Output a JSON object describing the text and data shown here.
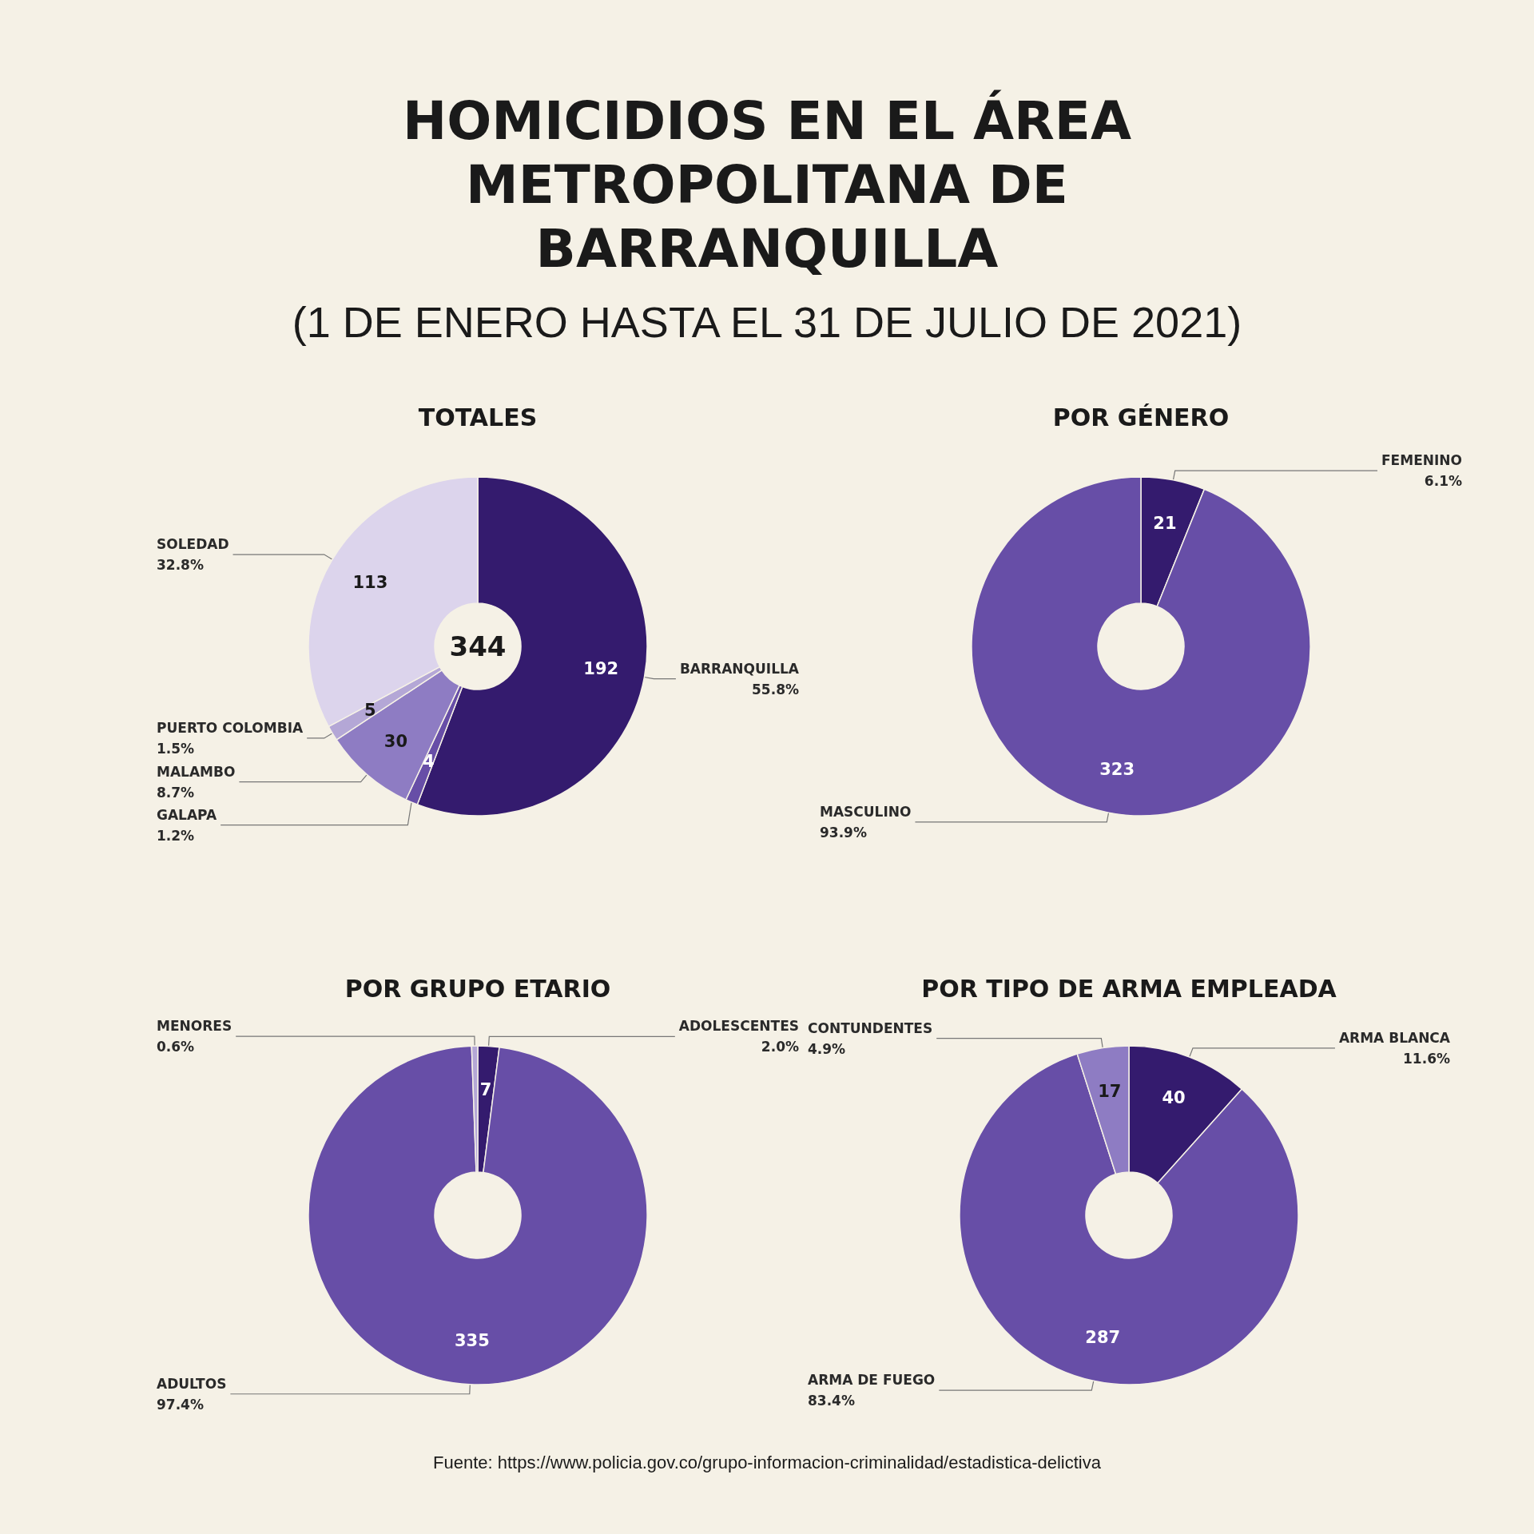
{
  "chart_data": [
    {
      "type": "other",
      "title": "HOMICIDIOS EN EL ÁREA METROPOLITANA DE BARRANQUILLA",
      "subtitle": "(1 DE ENERO HASTA EL 31 DE JULIO DE 2021)",
      "annotations": [
        "Fuente: https://www.policia.gov.co/grupo-informacion-criminalidad/estadistica-delictiva"
      ]
    },
    {
      "type": "donut",
      "title": "TOTALES",
      "categories": [
        "BARRANQUILLA",
        "GALAPA",
        "MALAMBO",
        "PUERTO COLOMBIA",
        "SOLEDAD"
      ],
      "values": [
        192,
        4,
        30,
        5,
        113
      ],
      "colors": [
        "#341b6e",
        "#674ea7",
        "#8e7cc3",
        "#b4a7d6",
        "#dcd4ec"
      ],
      "value_labels": [
        "192",
        "4",
        "30",
        "5",
        "113"
      ],
      "annotations": [
        "344",
        {
          "text": "55.8%",
          "x": "BARRANQUILLA"
        },
        {
          "text": "1.2%",
          "x": "GALAPA"
        },
        {
          "text": "8.7%",
          "x": "MALAMBO"
        },
        {
          "text": "1.5%",
          "x": "PUERTO COLOMBIA"
        },
        {
          "text": "32.8%",
          "x": "SOLEDAD"
        }
      ]
    },
    {
      "type": "donut",
      "title": "POR GÉNERO",
      "categories": [
        "FEMENINO",
        "MASCULINO"
      ],
      "values": [
        21,
        323
      ],
      "colors": [
        "#341b6e",
        "#674ea7"
      ],
      "value_labels": [
        "21",
        "323"
      ],
      "annotations": [
        {
          "text": "6.1%",
          "x": "FEMENINO"
        },
        {
          "text": "93.9%",
          "x": "MASCULINO"
        }
      ]
    },
    {
      "type": "donut",
      "title": "POR GRUPO ETARIO",
      "categories": [
        "ADOLESCENTES",
        "ADULTOS",
        "MENORES"
      ],
      "values": [
        7,
        335,
        2
      ],
      "colors": [
        "#341b6e",
        "#674ea7",
        "#b4a7d6"
      ],
      "value_labels": [
        "7",
        "335",
        null
      ],
      "annotations": [
        {
          "text": "2.0%",
          "x": "ADOLESCENTES"
        },
        {
          "text": "97.4%",
          "x": "ADULTOS"
        },
        {
          "text": "0.6%",
          "x": "MENORES"
        }
      ]
    },
    {
      "type": "donut",
      "title": "POR TIPO DE ARMA EMPLEADA",
      "categories": [
        "ARMA BLANCA",
        "ARMA DE FUEGO",
        "CONTUNDENTES"
      ],
      "values": [
        40,
        287,
        17
      ],
      "colors": [
        "#341b6e",
        "#674ea7",
        "#8e7cc3"
      ],
      "value_labels": [
        "40",
        "287",
        "17"
      ],
      "annotations": [
        {
          "text": "11.6%",
          "x": "ARMA BLANCA"
        },
        {
          "text": "83.4%",
          "x": "ARMA DE FUEGO"
        },
        {
          "text": "4.9%",
          "x": "CONTUNDENTES"
        }
      ]
    }
  ]
}
